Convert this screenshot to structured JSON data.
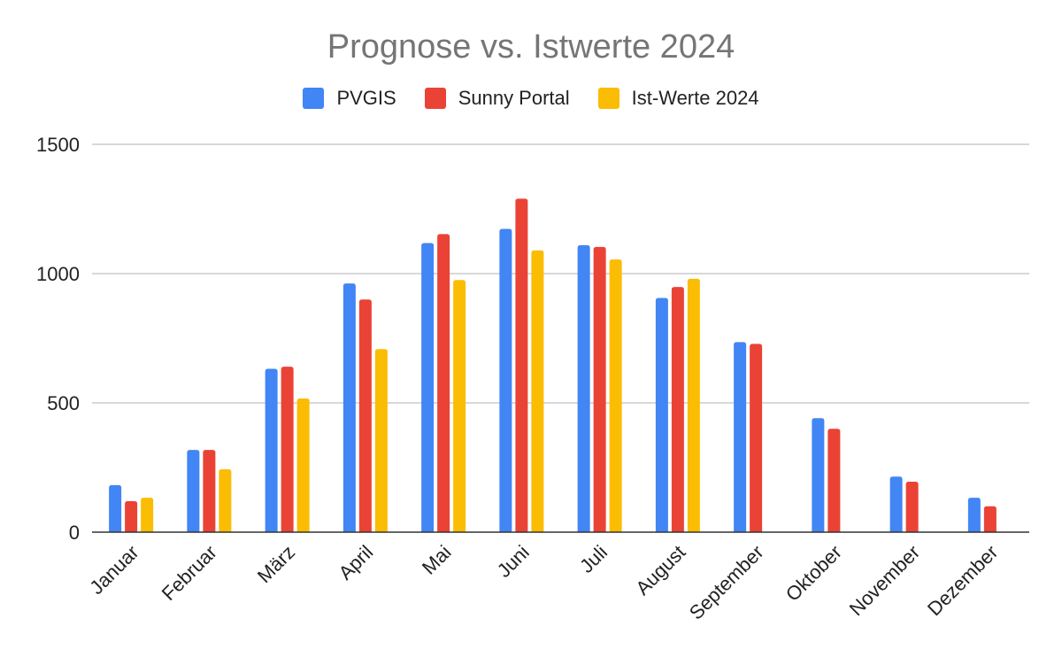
{
  "chart_data": {
    "type": "bar",
    "title": "Prognose vs. Istwerte 2024",
    "xlabel": "",
    "ylabel": "",
    "ylim": [
      0,
      1500
    ],
    "yticks": [
      0,
      500,
      1000,
      1500
    ],
    "grid": true,
    "legend_position": "top",
    "categories": [
      "Januar",
      "Februar",
      "März",
      "April",
      "Mai",
      "Juni",
      "Juli",
      "August",
      "September",
      "Oktober",
      "November",
      "Dezember"
    ],
    "series": [
      {
        "name": "PVGIS",
        "color": "#4285F4",
        "values": [
          182,
          318,
          632,
          962,
          1118,
          1173,
          1110,
          906,
          735,
          441,
          215,
          133
        ]
      },
      {
        "name": "Sunny Portal",
        "color": "#EA4335",
        "values": [
          120,
          318,
          640,
          900,
          1153,
          1290,
          1103,
          948,
          728,
          400,
          195,
          100
        ]
      },
      {
        "name": "Ist-Werte 2024",
        "color": "#FBBC04",
        "values": [
          133,
          243,
          517,
          708,
          975,
          1090,
          1055,
          980,
          null,
          null,
          null,
          null
        ]
      }
    ]
  }
}
